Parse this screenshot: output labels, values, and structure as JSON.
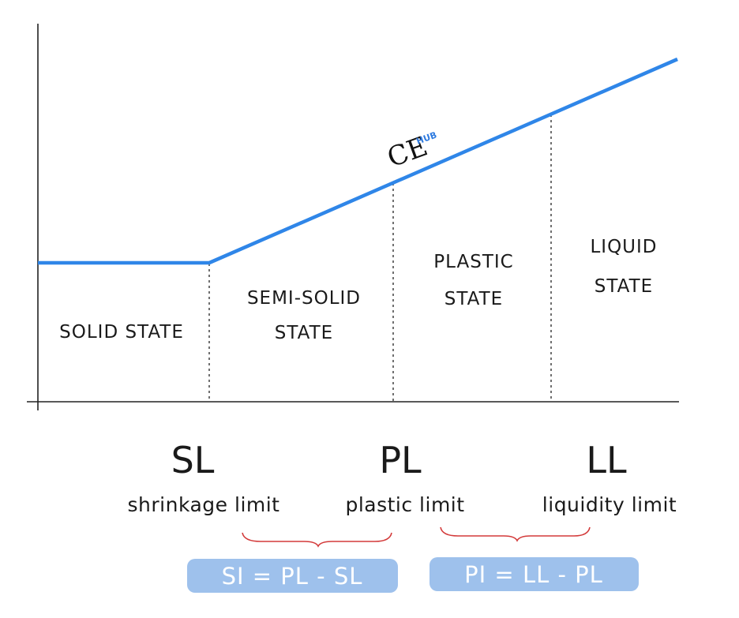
{
  "regions": [
    {
      "label_lines": [
        "SOLID STATE"
      ]
    },
    {
      "label_lines": [
        "SEMI-SOLID",
        "STATE"
      ]
    },
    {
      "label_lines": [
        "PLASTIC",
        "STATE"
      ]
    },
    {
      "label_lines": [
        "LIQUID",
        "STATE"
      ]
    }
  ],
  "limits": [
    {
      "abbr": "SL",
      "name": "shrinkage limit"
    },
    {
      "abbr": "PL",
      "name": "plastic limit"
    },
    {
      "abbr": "LL",
      "name": "liquidity limit"
    }
  ],
  "formulas": [
    {
      "text": "SI = PL - SL"
    },
    {
      "text": "PI = LL - PL"
    }
  ],
  "logo": {
    "main": "CE",
    "sup": "HUB"
  },
  "colors": {
    "curve": "#2f86e8",
    "formula_bg": "#9ec1ec",
    "brace": "#d33a3a",
    "axis": "#222222"
  }
}
